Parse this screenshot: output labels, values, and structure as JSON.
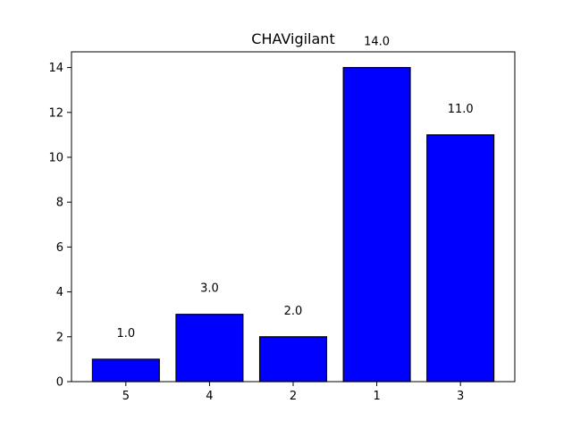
{
  "chart_data": {
    "type": "bar",
    "title": "CHAVigilant",
    "xlabel": "",
    "ylabel": "",
    "categories": [
      "5",
      "4",
      "2",
      "1",
      "3"
    ],
    "values": [
      1,
      3,
      2,
      14,
      11
    ],
    "value_labels": [
      "1.0",
      "3.0",
      "2.0",
      "14.0",
      "11.0"
    ],
    "ylim": [
      0,
      14.7
    ],
    "yticks": [
      0,
      2,
      4,
      6,
      8,
      10,
      12,
      14
    ],
    "ytick_labels": [
      "0",
      "2",
      "4",
      "6",
      "8",
      "10",
      "12",
      "14"
    ],
    "grid": false,
    "legend": "none",
    "bar_color": "#0000ff",
    "bar_edge_color": "#000000"
  }
}
